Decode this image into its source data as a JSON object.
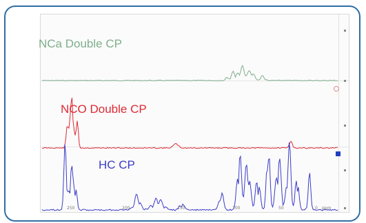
{
  "labels": {
    "nca": "NCa Double CP",
    "nco": "NCO Double CP",
    "hc": "HC CP"
  },
  "colors": {
    "frame": "#2f6ea3",
    "nca": "#7fae8c",
    "nco": "#dd2a33",
    "hc": "#3b3bc8"
  },
  "x_axis": {
    "ticks": [
      "250",
      "200",
      "150",
      "100",
      "50",
      "0",
      "ppm"
    ]
  }
}
